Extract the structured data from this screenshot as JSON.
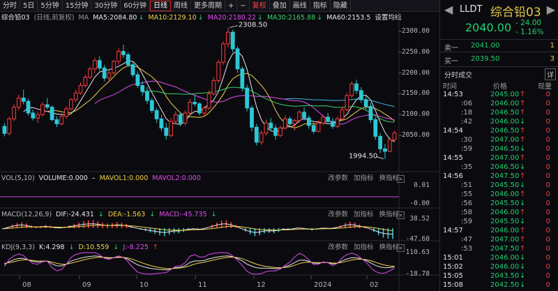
{
  "toolbar": {
    "items": [
      "分时",
      "5日",
      "5分钟",
      "15分钟",
      "30分钟",
      "60分钟",
      "日线",
      "周线",
      "更多周期",
      "+",
      "−",
      "复权",
      "叠加",
      "画线",
      "指标",
      "隐藏"
    ],
    "active": "日线",
    "dropdown_item": "复权"
  },
  "main_panel": {
    "title": "综合铅03",
    "adjust_note": "(日线,前复权)",
    "ma_label": "MA",
    "ma_values": [
      {
        "label": "MA5:2084.80",
        "arrow": "↓",
        "color": "#e8e8e8"
      },
      {
        "label": "MA10:2129.10",
        "arrow": "↓",
        "color": "#f0d24a"
      },
      {
        "label": "MA20:2180.22",
        "arrow": "↓",
        "color": "#e04cf0"
      },
      {
        "label": "MA30:2165.88",
        "arrow": "↓",
        "color": "#3ad36a"
      },
      {
        "label": "MA60:2153.5",
        "arrow": "",
        "color": "#e8e8e8"
      }
    ],
    "settings_link": "设置均线",
    "y_ticks": [
      "2300.00",
      "2250.00",
      "2200.00",
      "2150.00",
      "2100.00",
      "2050.00"
    ],
    "high_label": "2308.50",
    "low_label": "1994.50"
  },
  "vol_panel": {
    "title": "VOL(5,10)",
    "volume": "VOLUME:0.000",
    "arrow": "–",
    "mavol1": "MAVOL1:0.000",
    "mavol2": "MAVOL2:0.000",
    "y_ticks": [
      "0.01",
      "-0.00"
    ]
  },
  "macd_panel": {
    "title": "MACD(12,26,9)",
    "dif": "DIF:-24.431",
    "dea": "DEA:-1.563",
    "macd": "MACD:-45.735",
    "y_ticks": [
      "38.52",
      "-47.60"
    ]
  },
  "kdj_panel": {
    "title": "KDJ(9,3,3)",
    "k": "K:4.298",
    "d": "D:10.559",
    "j": "J:-8.225",
    "y_ticks": [
      "110.63",
      "-18.78"
    ]
  },
  "panel_buttons": [
    "改参数",
    "加指标",
    "换指标"
  ],
  "x_labels": [
    "08",
    "09",
    "10",
    "11",
    "12",
    "2024",
    "02"
  ],
  "quote": {
    "code": "LLDT",
    "name": "综合铅03",
    "price": "2040.00",
    "change": "- 24.00",
    "change_pct": "- 1.16%",
    "sell_label": "卖一",
    "sell_price": "2041.00",
    "sell_qty": "1",
    "buy_label": "买一",
    "buy_price": "2039.50",
    "buy_qty": "3",
    "trades_title": "分时成交",
    "detail_btn": "详",
    "col_time": "时间",
    "col_price": "价格",
    "col_vol": "现量",
    "trades": [
      {
        "time": "14:53",
        "price": "2045.00",
        "dir": "↑",
        "vol": "0",
        "bold": true
      },
      {
        "time": ":06",
        "price": "2046.00",
        "dir": "↑",
        "vol": "0"
      },
      {
        "time": ":18",
        "price": "2046.50",
        "dir": "↑",
        "vol": "0"
      },
      {
        "time": ":42",
        "price": "2046.00",
        "dir": "↓",
        "vol": "0"
      },
      {
        "time": "14:54",
        "price": "2046.50",
        "dir": "↑",
        "vol": "0",
        "bold": true
      },
      {
        "time": ":30",
        "price": "2047.00",
        "dir": "↑",
        "vol": "0"
      },
      {
        "time": ":59",
        "price": "2046.50",
        "dir": "↓",
        "vol": "0"
      },
      {
        "time": "14:55",
        "price": "2047.00",
        "dir": "↑",
        "vol": "0",
        "bold": true
      },
      {
        "time": ":35",
        "price": "2046.50",
        "dir": "↓",
        "vol": "0"
      },
      {
        "time": "14:56",
        "price": "2047.50",
        "dir": "↑",
        "vol": "0",
        "bold": true
      },
      {
        "time": ":51",
        "price": "2045.50",
        "dir": "↓",
        "vol": "0"
      },
      {
        "time": ":55",
        "price": "2046.00",
        "dir": "↑",
        "vol": "0"
      },
      {
        "time": ":56",
        "price": "2045.50",
        "dir": "↓",
        "vol": "0"
      },
      {
        "time": ":58",
        "price": "2046.00",
        "dir": "↑",
        "vol": "0"
      },
      {
        "time": ":59",
        "price": "2045.50",
        "dir": "↓",
        "vol": "0"
      },
      {
        "time": "14:57",
        "price": "2046.00",
        "dir": "↑",
        "vol": "0",
        "bold": true
      },
      {
        "time": ":47",
        "price": "2047.00",
        "dir": "↑",
        "vol": "0"
      },
      {
        "time": ":53",
        "price": "2047.50",
        "dir": "↑",
        "vol": "0"
      },
      {
        "time": "15:01",
        "price": "2046.00",
        "dir": "↓",
        "vol": "0",
        "bold": true
      },
      {
        "time": "15:02",
        "price": "2046.00",
        "dir": "↓",
        "vol": "0",
        "bold": true
      },
      {
        "time": "15:05",
        "price": "2043.50",
        "dir": "↓",
        "vol": "0",
        "bold": true
      },
      {
        "time": "15:08",
        "price": "2042.50",
        "dir": "↓",
        "vol": "0",
        "bold": true
      }
    ]
  },
  "colors": {
    "up": "#ff3b3b",
    "down": "#1fd26f",
    "ma5": "#e8e8e8",
    "ma10": "#f0d24a",
    "ma20": "#e04cf0",
    "ma30": "#3ad36a",
    "ma60": "#3fb6e8"
  },
  "chart_data": {
    "type": "candlestick",
    "price_ylim": [
      1990,
      2320
    ],
    "candles": [
      [
        2072,
        2080,
        2048,
        2055
      ],
      [
        2055,
        2095,
        2050,
        2090
      ],
      [
        2090,
        2125,
        2085,
        2118
      ],
      [
        2118,
        2148,
        2110,
        2140
      ],
      [
        2140,
        2160,
        2125,
        2132
      ],
      [
        2132,
        2138,
        2098,
        2104
      ],
      [
        2104,
        2112,
        2086,
        2092
      ],
      [
        2092,
        2108,
        2080,
        2100
      ],
      [
        2100,
        2130,
        2096,
        2124
      ],
      [
        2124,
        2140,
        2112,
        2118
      ],
      [
        2118,
        2122,
        2084,
        2088
      ],
      [
        2088,
        2096,
        2070,
        2078
      ],
      [
        2078,
        2100,
        2074,
        2096
      ],
      [
        2096,
        2120,
        2090,
        2114
      ],
      [
        2114,
        2140,
        2110,
        2136
      ],
      [
        2136,
        2160,
        2130,
        2152
      ],
      [
        2152,
        2178,
        2148,
        2170
      ],
      [
        2170,
        2196,
        2165,
        2190
      ],
      [
        2190,
        2215,
        2186,
        2210
      ],
      [
        2210,
        2236,
        2200,
        2230
      ],
      [
        2230,
        2240,
        2205,
        2212
      ],
      [
        2212,
        2220,
        2180,
        2188
      ],
      [
        2188,
        2206,
        2178,
        2200
      ],
      [
        2200,
        2232,
        2195,
        2228
      ],
      [
        2228,
        2260,
        2220,
        2252
      ],
      [
        2252,
        2268,
        2236,
        2244
      ],
      [
        2244,
        2250,
        2214,
        2220
      ],
      [
        2220,
        2226,
        2190,
        2196
      ],
      [
        2196,
        2204,
        2164,
        2170
      ],
      [
        2170,
        2180,
        2146,
        2156
      ],
      [
        2156,
        2166,
        2126,
        2134
      ],
      [
        2134,
        2140,
        2104,
        2110
      ],
      [
        2110,
        2116,
        2080,
        2090
      ],
      [
        2090,
        2100,
        2060,
        2068
      ],
      [
        2068,
        2080,
        2040,
        2050
      ],
      [
        2050,
        2092,
        2046,
        2084
      ],
      [
        2084,
        2108,
        2078,
        2100
      ],
      [
        2100,
        2106,
        2072,
        2080
      ],
      [
        2080,
        2110,
        2074,
        2104
      ],
      [
        2104,
        2138,
        2100,
        2130
      ],
      [
        2130,
        2148,
        2120,
        2126
      ],
      [
        2126,
        2130,
        2098,
        2104
      ],
      [
        2104,
        2120,
        2096,
        2116
      ],
      [
        2116,
        2158,
        2112,
        2150
      ],
      [
        2150,
        2190,
        2146,
        2182
      ],
      [
        2182,
        2232,
        2176,
        2226
      ],
      [
        2226,
        2276,
        2220,
        2270
      ],
      [
        2270,
        2309,
        2262,
        2298
      ],
      [
        2298,
        2304,
        2250,
        2258
      ],
      [
        2258,
        2264,
        2200,
        2210
      ],
      [
        2210,
        2216,
        2156,
        2164
      ],
      [
        2164,
        2172,
        2108,
        2116
      ],
      [
        2116,
        2122,
        2060,
        2070
      ],
      [
        2070,
        2078,
        2026,
        2034
      ],
      [
        2034,
        2062,
        2028,
        2056
      ],
      [
        2056,
        2088,
        2050,
        2080
      ],
      [
        2080,
        2092,
        2060,
        2068
      ],
      [
        2068,
        2076,
        2040,
        2050
      ],
      [
        2050,
        2074,
        2046,
        2068
      ],
      [
        2068,
        2098,
        2064,
        2090
      ],
      [
        2090,
        2096,
        2070,
        2078
      ],
      [
        2078,
        2090,
        2062,
        2086
      ],
      [
        2086,
        2112,
        2080,
        2106
      ],
      [
        2106,
        2118,
        2086,
        2092
      ],
      [
        2092,
        2098,
        2066,
        2074
      ],
      [
        2074,
        2082,
        2054,
        2060
      ],
      [
        2060,
        2086,
        2058,
        2080
      ],
      [
        2080,
        2100,
        2074,
        2094
      ],
      [
        2094,
        2104,
        2078,
        2084
      ],
      [
        2084,
        2092,
        2066,
        2072
      ],
      [
        2072,
        2096,
        2068,
        2090
      ],
      [
        2090,
        2118,
        2086,
        2112
      ],
      [
        2112,
        2152,
        2108,
        2146
      ],
      [
        2146,
        2180,
        2140,
        2174
      ],
      [
        2174,
        2184,
        2150,
        2158
      ],
      [
        2158,
        2166,
        2128,
        2136
      ],
      [
        2136,
        2146,
        2112,
        2120
      ],
      [
        2120,
        2128,
        2080,
        2088
      ],
      [
        2088,
        2094,
        2040,
        2048
      ],
      [
        2048,
        2056,
        2008,
        2018
      ],
      [
        2018,
        2030,
        1994,
        2012
      ],
      [
        2012,
        2046,
        2010,
        2040
      ],
      [
        2040,
        2062,
        2034,
        2056
      ]
    ],
    "volume": [],
    "macd": [
      -5,
      5,
      15,
      22,
      25,
      20,
      12,
      8,
      10,
      14,
      10,
      4,
      2,
      6,
      12,
      18,
      24,
      30,
      33,
      34,
      30,
      24,
      20,
      22,
      26,
      24,
      18,
      10,
      2,
      -6,
      -12,
      -18,
      -24,
      -30,
      -34,
      -28,
      -22,
      -22,
      -16,
      -8,
      -4,
      -8,
      -6,
      4,
      14,
      24,
      32,
      34,
      26,
      14,
      0,
      -14,
      -26,
      -34,
      -30,
      -22,
      -20,
      -22,
      -16,
      -8,
      -8,
      -6,
      2,
      0,
      -6,
      -10,
      -6,
      0,
      0,
      -2,
      4,
      12,
      22,
      28,
      24,
      16,
      8,
      -2,
      -16,
      -30,
      -40,
      -44,
      -46
    ],
    "kdj_ylim": [
      -18.78,
      110.63
    ],
    "macd_ylim": [
      -47.6,
      38.52
    ]
  }
}
